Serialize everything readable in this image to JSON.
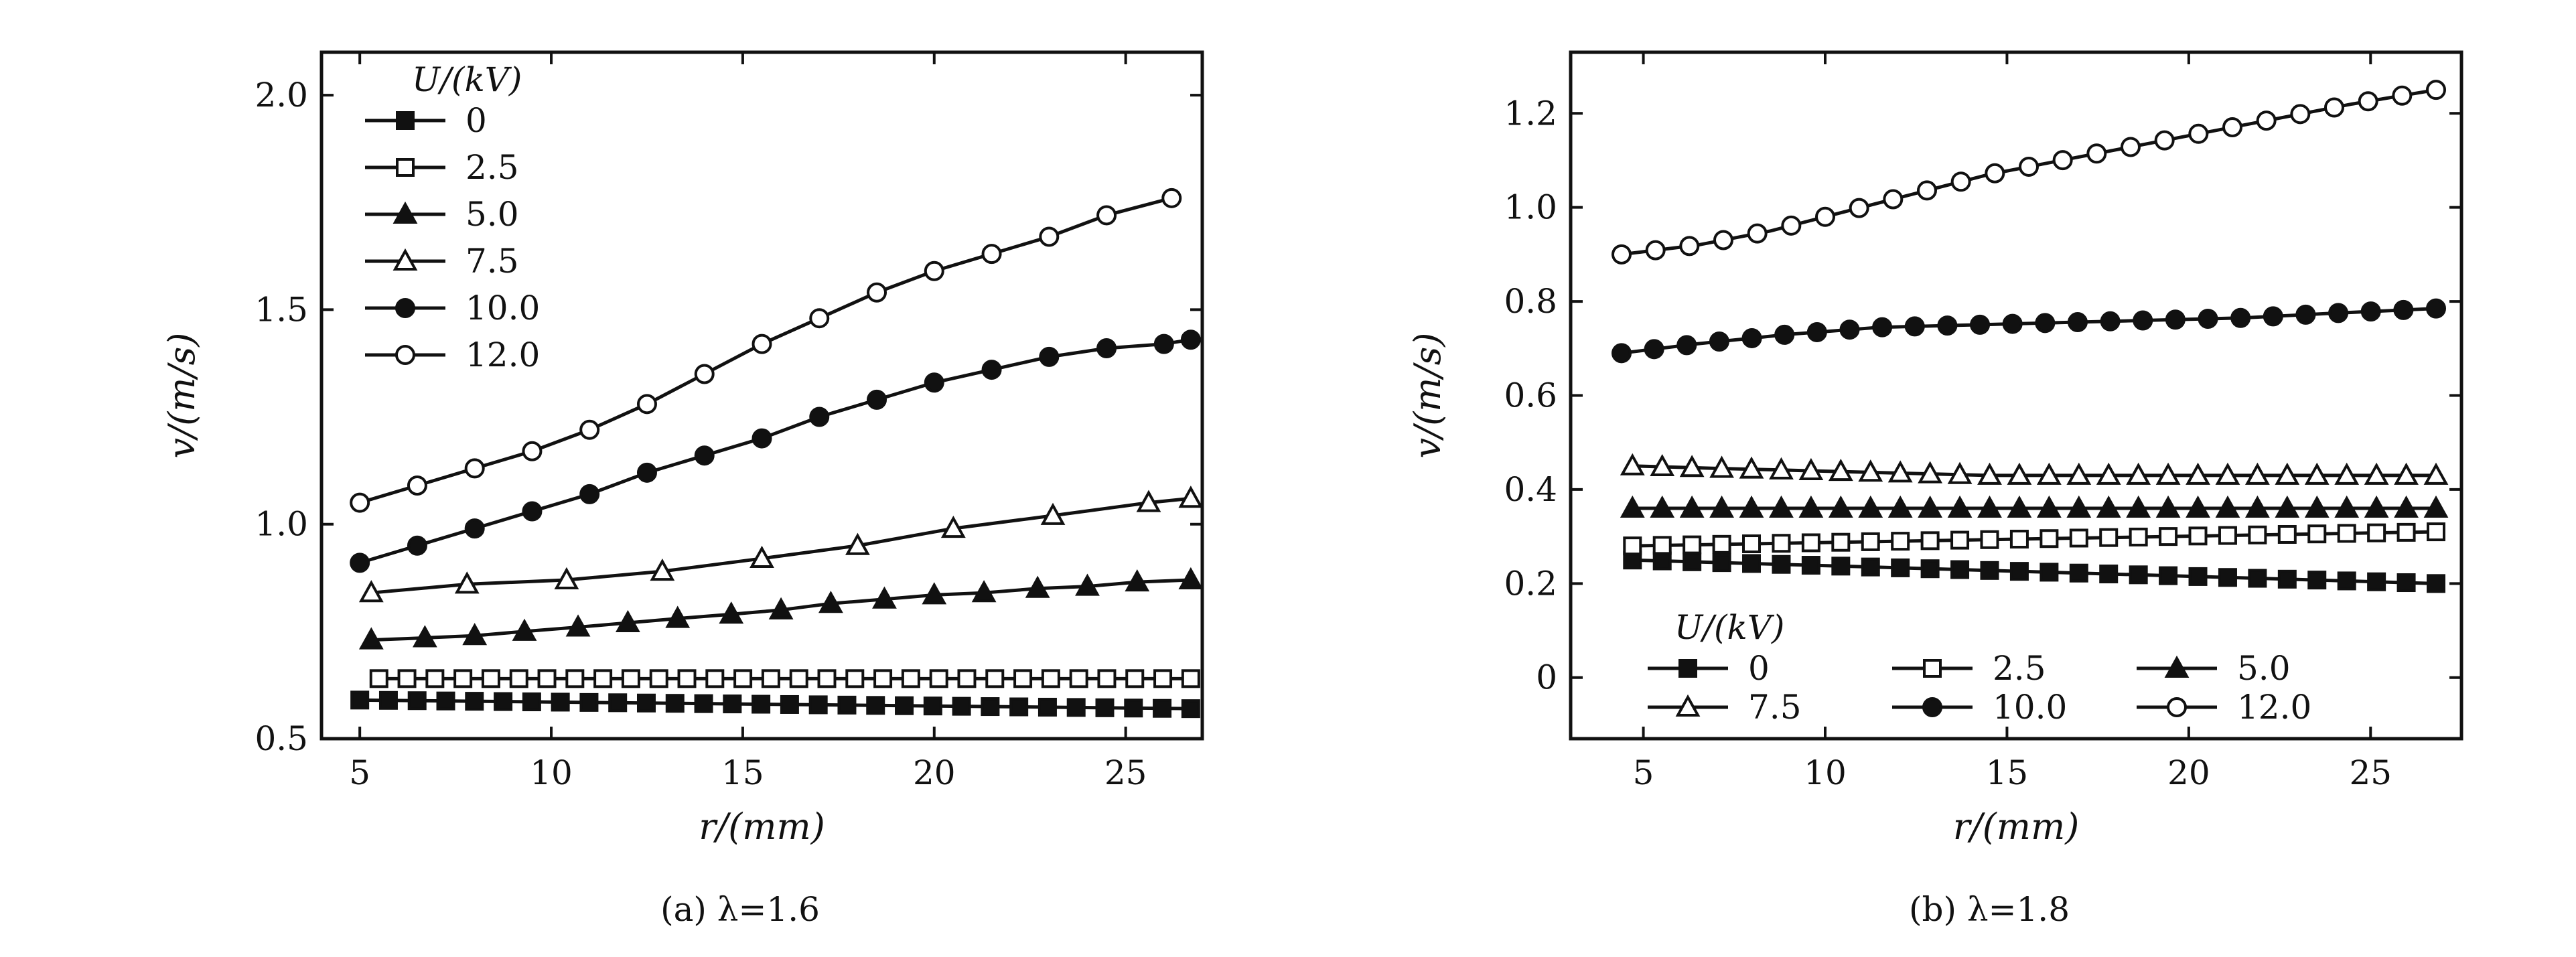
{
  "chart_data": [
    {
      "type": "line",
      "caption": "(a) λ=1.6",
      "xlabel": "r/(mm)",
      "ylabel": "v/(m/s)",
      "xlim": [
        4,
        27
      ],
      "ylim": [
        0.5,
        2.1
      ],
      "xticks": [
        5,
        10,
        15,
        20,
        25
      ],
      "yticks": [
        0.5,
        1.0,
        1.5,
        2.0
      ],
      "ytick_labels": [
        "0.5",
        "1.0",
        "1.5",
        "2.0"
      ],
      "legend_title": "U/(kV)",
      "legend_position": "top-left",
      "series": [
        {
          "name": "0",
          "marker": "square-filled",
          "x": [
            5,
            26.7
          ],
          "y": [
            0.59,
            0.57
          ],
          "marker_count": 30
        },
        {
          "name": "2.5",
          "marker": "square-open",
          "x": [
            5.5,
            26.7
          ],
          "y": [
            0.64,
            0.64
          ],
          "marker_count": 30
        },
        {
          "name": "5.0",
          "marker": "triangle-filled",
          "x": [
            5.3,
            6.7,
            8,
            9.3,
            10.7,
            12,
            13.3,
            14.7,
            16,
            17.3,
            18.7,
            20,
            21.3,
            22.7,
            24,
            25.3,
            26.7
          ],
          "y": [
            0.73,
            0.735,
            0.74,
            0.75,
            0.76,
            0.77,
            0.78,
            0.79,
            0.8,
            0.815,
            0.825,
            0.835,
            0.84,
            0.85,
            0.855,
            0.865,
            0.87
          ]
        },
        {
          "name": "7.5",
          "marker": "triangle-open",
          "x": [
            5.3,
            7.8,
            10.4,
            12.9,
            15.5,
            18,
            20.5,
            23.1,
            25.6,
            26.7
          ],
          "y": [
            0.84,
            0.86,
            0.87,
            0.89,
            0.92,
            0.95,
            0.99,
            1.02,
            1.05,
            1.06
          ]
        },
        {
          "name": "10.0",
          "marker": "circle-filled",
          "x": [
            5,
            6.5,
            8,
            9.5,
            11,
            12.5,
            14,
            15.5,
            17,
            18.5,
            20,
            21.5,
            23,
            24.5,
            26,
            26.7
          ],
          "y": [
            0.91,
            0.95,
            0.99,
            1.03,
            1.07,
            1.12,
            1.16,
            1.2,
            1.25,
            1.29,
            1.33,
            1.36,
            1.39,
            1.41,
            1.42,
            1.43
          ]
        },
        {
          "name": "12.0",
          "marker": "circle-open",
          "x": [
            5,
            6.5,
            8,
            9.5,
            11,
            12.5,
            14,
            15.5,
            17,
            18.5,
            20,
            21.5,
            23,
            24.5,
            26.2
          ],
          "y": [
            1.05,
            1.09,
            1.13,
            1.17,
            1.22,
            1.28,
            1.35,
            1.42,
            1.48,
            1.54,
            1.59,
            1.63,
            1.67,
            1.72,
            1.76
          ]
        }
      ]
    },
    {
      "type": "line",
      "caption": "(b) λ=1.8",
      "xlabel": "r/(mm)",
      "ylabel": "v/(m/s)",
      "xlim": [
        3,
        27.5
      ],
      "ylim": [
        -0.13,
        1.33
      ],
      "xticks": [
        5,
        10,
        15,
        20,
        25
      ],
      "yticks": [
        0,
        0.2,
        0.4,
        0.6,
        0.8,
        1.0,
        1.2
      ],
      "ytick_labels": [
        "0",
        "0.2",
        "0.4",
        "0.6",
        "0.8",
        "1.0",
        "1.2"
      ],
      "legend_title": "U/(kV)",
      "legend_position": "bottom-left",
      "series": [
        {
          "name": "0",
          "marker": "square-filled",
          "x": [
            4.7,
            26.8
          ],
          "y": [
            0.25,
            0.2
          ],
          "marker_count": 28
        },
        {
          "name": "2.5",
          "marker": "square-open",
          "x": [
            4.7,
            26.8
          ],
          "y": [
            0.28,
            0.31
          ],
          "marker_count": 28
        },
        {
          "name": "5.0",
          "marker": "triangle-filled",
          "x": [
            4.7,
            26.8
          ],
          "y": [
            0.36,
            0.36
          ],
          "marker_count": 28
        },
        {
          "name": "7.5",
          "marker": "triangle-open",
          "x": [
            4.7,
            7,
            9.5,
            12,
            14.5,
            17,
            19.5,
            22,
            24.5,
            26.8
          ],
          "y": [
            0.45,
            0.445,
            0.44,
            0.435,
            0.43,
            0.43,
            0.43,
            0.43,
            0.43,
            0.43
          ],
          "marker_count": 28
        },
        {
          "name": "10.0",
          "marker": "circle-filled",
          "x": [
            4.4,
            6.5,
            9,
            11.5,
            14,
            16.5,
            19,
            21.5,
            24,
            26.8
          ],
          "y": [
            0.69,
            0.71,
            0.73,
            0.745,
            0.75,
            0.755,
            0.76,
            0.765,
            0.775,
            0.785
          ],
          "marker_count": 26
        },
        {
          "name": "12.0",
          "marker": "circle-open",
          "x": [
            4.4,
            6.5,
            8.5,
            10.5,
            12.5,
            14.5,
            16.5,
            18.5,
            20.5,
            22.5,
            24.5,
            26.8
          ],
          "y": [
            0.9,
            0.92,
            0.95,
            0.99,
            1.03,
            1.07,
            1.1,
            1.13,
            1.16,
            1.19,
            1.22,
            1.25
          ],
          "marker_count": 25
        }
      ]
    }
  ]
}
